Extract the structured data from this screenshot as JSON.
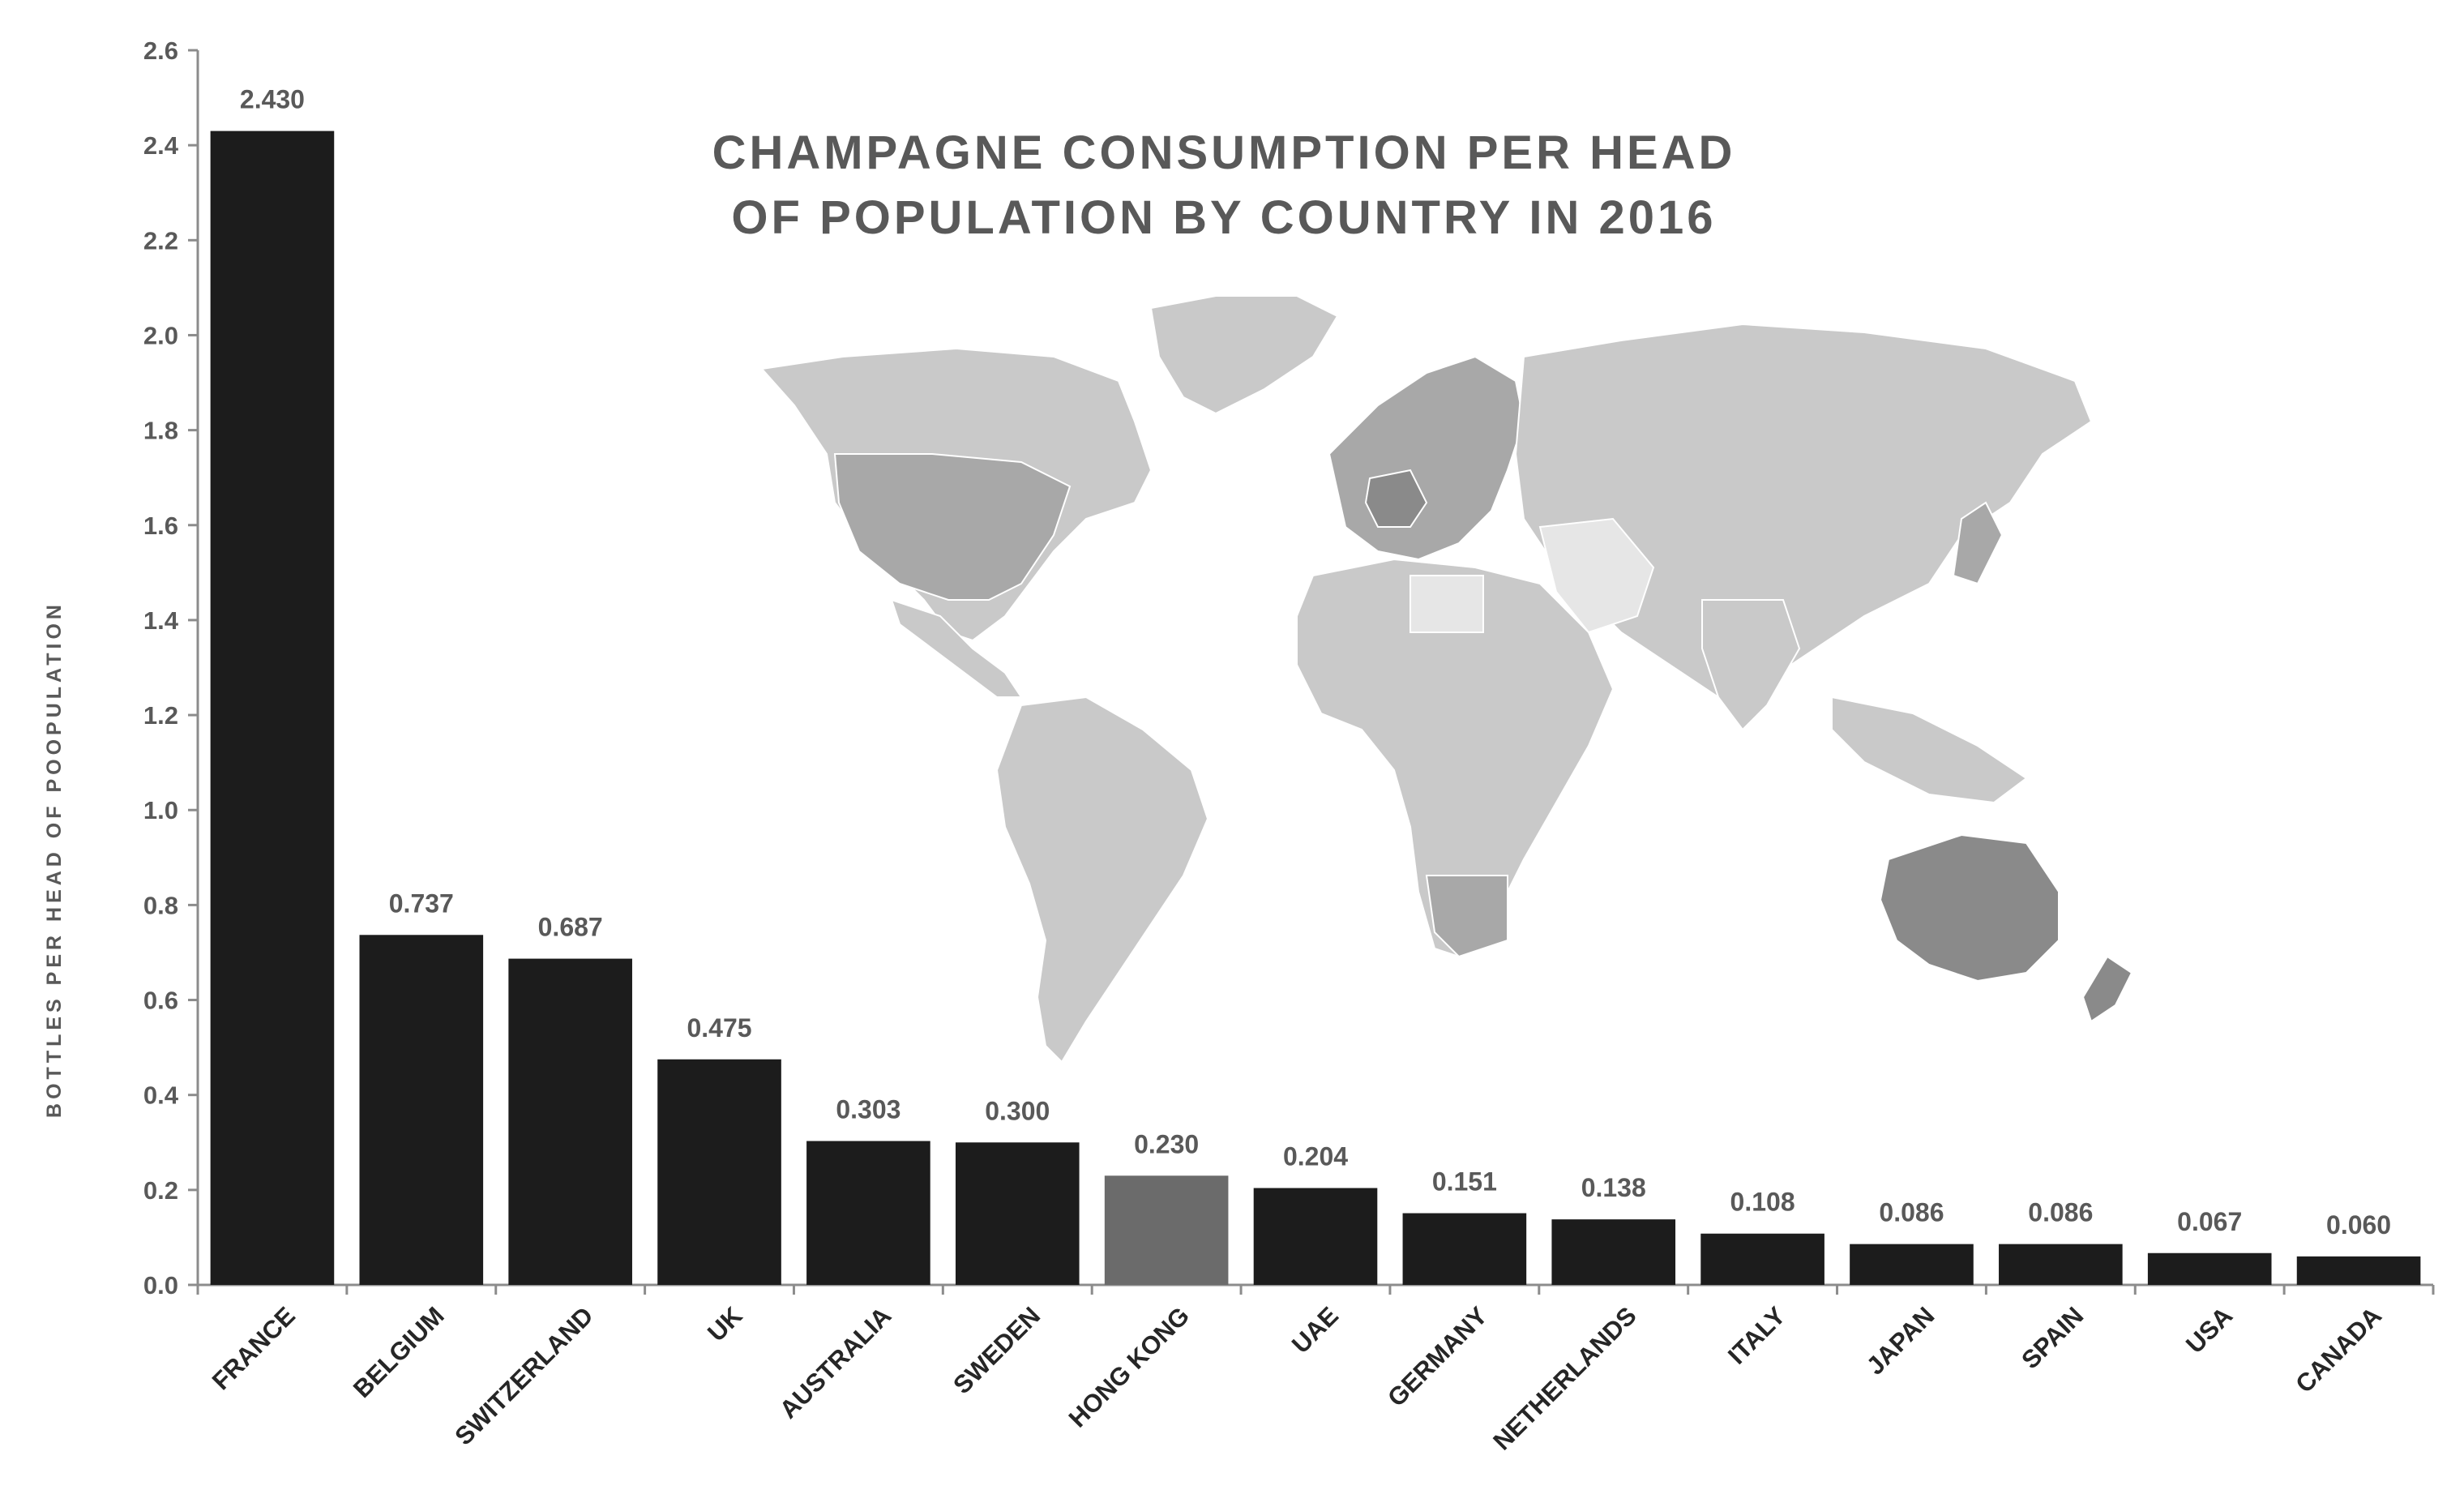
{
  "chart_data": {
    "type": "bar",
    "title": [
      "CHAMPAGNE CONSUMPTION PER HEAD",
      "OF POPULATION BY COUNTRY IN 2016"
    ],
    "xlabel": "",
    "ylabel": "BOTTLES PER HEAD OF POOPULATION",
    "ylim": [
      0,
      2.6
    ],
    "yticks": [
      "0.0",
      "0.2",
      "0.4",
      "0.6",
      "0.8",
      "1.0",
      "1.2",
      "1.4",
      "1.6",
      "1.8",
      "2.0",
      "2.2",
      "2.4",
      "2.6"
    ],
    "categories": [
      "FRANCE",
      "BELGIUM",
      "SWITZERLAND",
      "UK",
      "AUSTRALIA",
      "SWEDEN",
      "HONG KONG",
      "UAE",
      "GERMANY",
      "NETHERLANDS",
      "ITALY",
      "JAPAN",
      "SPAIN",
      "USA",
      "CANADA"
    ],
    "values": [
      2.43,
      0.737,
      0.687,
      0.475,
      0.303,
      0.3,
      0.23,
      0.204,
      0.151,
      0.138,
      0.108,
      0.086,
      0.086,
      0.067,
      0.06
    ],
    "value_labels": [
      "2.430",
      "0.737",
      "0.687",
      "0.475",
      "0.303",
      "0.300",
      "0.230",
      "0.204",
      "0.151",
      "0.138",
      "0.108",
      "0.086",
      "0.086",
      "0.067",
      "0.060"
    ],
    "highlight_category": "HONG KONG",
    "grid": false,
    "colors": {
      "bar": "#1c1c1c",
      "highlight_bar": "#6b6b6b",
      "axis": "#8c8c8c",
      "text": "#595959",
      "category_text": "#262626",
      "map_land": "#c9c9c9"
    },
    "background_image": "world-map-greyscale"
  }
}
